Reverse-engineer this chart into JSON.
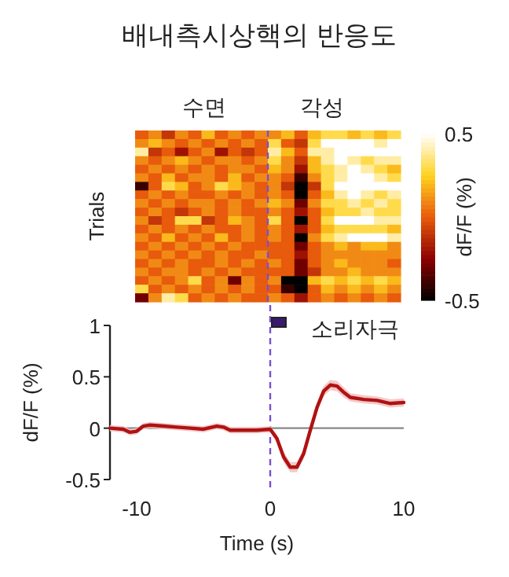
{
  "chart_data": [
    {
      "type": "heatmap",
      "title": "배내측시상핵의 반응도",
      "ylabel": "Trials",
      "clabel": "dF/F (%)",
      "annotations": [
        "수면",
        "각성"
      ],
      "categories": [
        null,
        null,
        null,
        null,
        null,
        null,
        null,
        null,
        null,
        null,
        null,
        null,
        null,
        null,
        null,
        null,
        null,
        null,
        null,
        null
      ],
      "y_categories": [
        null,
        null,
        null,
        null,
        null,
        null,
        null,
        null,
        null,
        null,
        null,
        null,
        null,
        null,
        null,
        null,
        null,
        null,
        null,
        null
      ],
      "cells": [
        [
          0,
          0.1,
          -0.1,
          0.1,
          0,
          0.2,
          0,
          0.1,
          0,
          0.1,
          0.1,
          0.2,
          0,
          0.2,
          0.3,
          0.3,
          0.2,
          0.3,
          0.2,
          0.3
        ],
        [
          0.1,
          0.2,
          0.1,
          0,
          0.1,
          0,
          0.1,
          0,
          0.1,
          0,
          0.3,
          0,
          -0.1,
          0.3,
          0.5,
          0.5,
          0.5,
          0.5,
          0.4,
          0.5
        ],
        [
          0.4,
          -0.1,
          0,
          -0.2,
          0,
          0.1,
          -0.2,
          0,
          -0.1,
          0,
          0.4,
          0.2,
          0,
          0.4,
          0.4,
          0.5,
          0.5,
          0.5,
          0.5,
          0.5
        ],
        [
          0.1,
          0,
          0.1,
          0.2,
          0.1,
          0,
          0.1,
          0.1,
          0,
          0.1,
          0.3,
          0.1,
          -0.1,
          0.2,
          0.4,
          0.5,
          0.4,
          0.3,
          0.4,
          0.4
        ],
        [
          0,
          0.1,
          0,
          0.1,
          0,
          0.1,
          0,
          0.1,
          0.1,
          0,
          0.2,
          0.1,
          -0.2,
          0.2,
          0.3,
          0.4,
          0.5,
          0.4,
          0.3,
          0.2
        ],
        [
          0.1,
          0,
          0.2,
          0,
          0.1,
          0.1,
          0,
          0.2,
          0,
          0.1,
          0.1,
          0,
          -0.4,
          0.1,
          0.3,
          0.4,
          0.5,
          0.5,
          0.4,
          0.3
        ],
        [
          -0.4,
          0,
          0.3,
          0.2,
          0,
          0.1,
          0.3,
          0.2,
          0.1,
          0,
          0.1,
          -0.1,
          -0.5,
          -0.1,
          0.3,
          0.5,
          0.5,
          0.5,
          0.5,
          0.5
        ],
        [
          0,
          0.1,
          0,
          0.1,
          0,
          0,
          0.1,
          0,
          0.1,
          0,
          0.1,
          0,
          -0.5,
          0,
          0.2,
          0.4,
          0.5,
          0.4,
          0.3,
          0.4
        ],
        [
          0.1,
          0,
          0.1,
          0,
          0.1,
          0.1,
          0,
          0.1,
          0,
          0.1,
          0.2,
          0.1,
          -0.3,
          0.1,
          0.3,
          0.3,
          0.4,
          0.3,
          0.4,
          0.3
        ],
        [
          0,
          0.1,
          0,
          -0.1,
          0,
          0.1,
          0,
          0.1,
          0,
          0,
          0.1,
          0,
          -0.2,
          0,
          0.2,
          0.3,
          0.3,
          0.4,
          0.3,
          0.3
        ],
        [
          0.1,
          -0.1,
          0,
          0.3,
          0.3,
          -0.1,
          0,
          0.2,
          0.1,
          0,
          0.3,
          0,
          -0.5,
          0,
          0.3,
          0.5,
          0.5,
          0.5,
          0.4,
          0.4
        ],
        [
          0,
          0.1,
          0,
          0.1,
          0,
          0.1,
          0,
          0,
          0.1,
          0,
          0.1,
          0,
          -0.2,
          0,
          0.2,
          0.3,
          0.3,
          0.3,
          0.3,
          0.2
        ],
        [
          0.1,
          0,
          0.2,
          0,
          0.1,
          0,
          0.2,
          0,
          0.1,
          0,
          0.1,
          0,
          -0.5,
          0.1,
          0.3,
          0.4,
          0.5,
          0.5,
          0.5,
          0.4
        ],
        [
          0,
          0.1,
          0,
          0.1,
          0,
          0.1,
          0,
          0.1,
          0,
          0,
          0,
          0,
          -0.3,
          0,
          0.1,
          0.2,
          0.1,
          0.2,
          0.2,
          0.1
        ],
        [
          0.1,
          0,
          0.1,
          0,
          0.1,
          0,
          0.1,
          0,
          0,
          0.1,
          0,
          0,
          -0.2,
          0,
          0.1,
          0.1,
          0.1,
          0.1,
          0.1,
          0.1
        ],
        [
          0,
          0.1,
          0,
          0.1,
          0,
          0,
          0.1,
          0,
          0.1,
          0,
          0.1,
          0,
          -0.3,
          0,
          0.1,
          0.2,
          0.1,
          0.1,
          0.1,
          0
        ],
        [
          0.1,
          0,
          0.1,
          0.1,
          0,
          0.1,
          0,
          0.1,
          0,
          0,
          0,
          0,
          -0.3,
          -0.1,
          0.1,
          0.1,
          0.2,
          0.1,
          0.1,
          0.1
        ],
        [
          0,
          0.1,
          0,
          0.1,
          0.3,
          0,
          0.1,
          -0.3,
          0.1,
          0,
          0.1,
          -0.5,
          -0.5,
          0.2,
          0.3,
          0.2,
          0.3,
          0.2,
          0.3,
          0.2
        ],
        [
          0.3,
          0,
          0.1,
          0,
          0.1,
          0,
          0.1,
          0,
          0.1,
          0,
          0,
          -0.4,
          -0.5,
          0,
          0.2,
          0.1,
          0.2,
          0.1,
          0.2,
          0.1
        ],
        [
          -0.3,
          0.1,
          0.4,
          0.3,
          0,
          0.1,
          0,
          0.1,
          0,
          0,
          0.1,
          0,
          -0.2,
          0,
          0.1,
          0,
          0.1,
          0,
          0.1,
          0
        ]
      ],
      "clim": [
        -0.5,
        0.5
      ],
      "cticks": [
        -0.5,
        0.5
      ]
    },
    {
      "type": "line",
      "xlabel": "Time (s)",
      "ylabel": "dF/F (%)",
      "xlim": [
        -12,
        10
      ],
      "ylim": [
        -0.5,
        1
      ],
      "xticks": [
        -10,
        0,
        10
      ],
      "yticks": [
        -0.5,
        0,
        0.5,
        1
      ],
      "annotations": [
        "소리자극"
      ],
      "series": [
        {
          "color": "#b01212",
          "x": [
            -12,
            -11,
            -10.5,
            -10,
            -9.5,
            -9,
            -8,
            -7,
            -6,
            -5,
            -4,
            -3.5,
            -3,
            -2,
            -1,
            0,
            0.5,
            1,
            1.5,
            2,
            2.5,
            3,
            3.5,
            4,
            4.5,
            5,
            5.5,
            6,
            7,
            8,
            9,
            10
          ],
          "values": [
            0,
            -0.01,
            -0.04,
            -0.03,
            0.02,
            0.03,
            0.02,
            0.01,
            0,
            -0.01,
            0.02,
            0.01,
            -0.02,
            -0.02,
            -0.02,
            -0.01,
            -0.1,
            -0.28,
            -0.38,
            -0.38,
            -0.25,
            -0.02,
            0.2,
            0.36,
            0.42,
            0.41,
            0.35,
            0.3,
            0.28,
            0.27,
            0.24,
            0.25
          ],
          "lower": [
            -0.03,
            -0.04,
            -0.07,
            -0.06,
            -0.01,
            0,
            -0.01,
            -0.02,
            -0.03,
            -0.04,
            -0.01,
            -0.02,
            -0.05,
            -0.05,
            -0.05,
            -0.04,
            -0.14,
            -0.33,
            -0.43,
            -0.43,
            -0.3,
            -0.07,
            0.15,
            0.31,
            0.37,
            0.36,
            0.3,
            0.26,
            0.24,
            0.23,
            0.2,
            0.21
          ],
          "upper": [
            0.03,
            0.02,
            -0.01,
            0,
            0.05,
            0.06,
            0.05,
            0.04,
            0.03,
            0.02,
            0.05,
            0.04,
            0.01,
            0.01,
            0.01,
            0.02,
            -0.06,
            -0.23,
            -0.33,
            -0.33,
            -0.2,
            0.03,
            0.25,
            0.41,
            0.47,
            0.46,
            0.4,
            0.34,
            0.32,
            0.31,
            0.28,
            0.29
          ]
        }
      ],
      "ref_lines": [
        {
          "axis": "x",
          "value": 0,
          "color": "#7b4fd0",
          "line_style": "dashed"
        },
        {
          "axis": "y",
          "value": 0,
          "color": "#888888"
        }
      ]
    }
  ]
}
